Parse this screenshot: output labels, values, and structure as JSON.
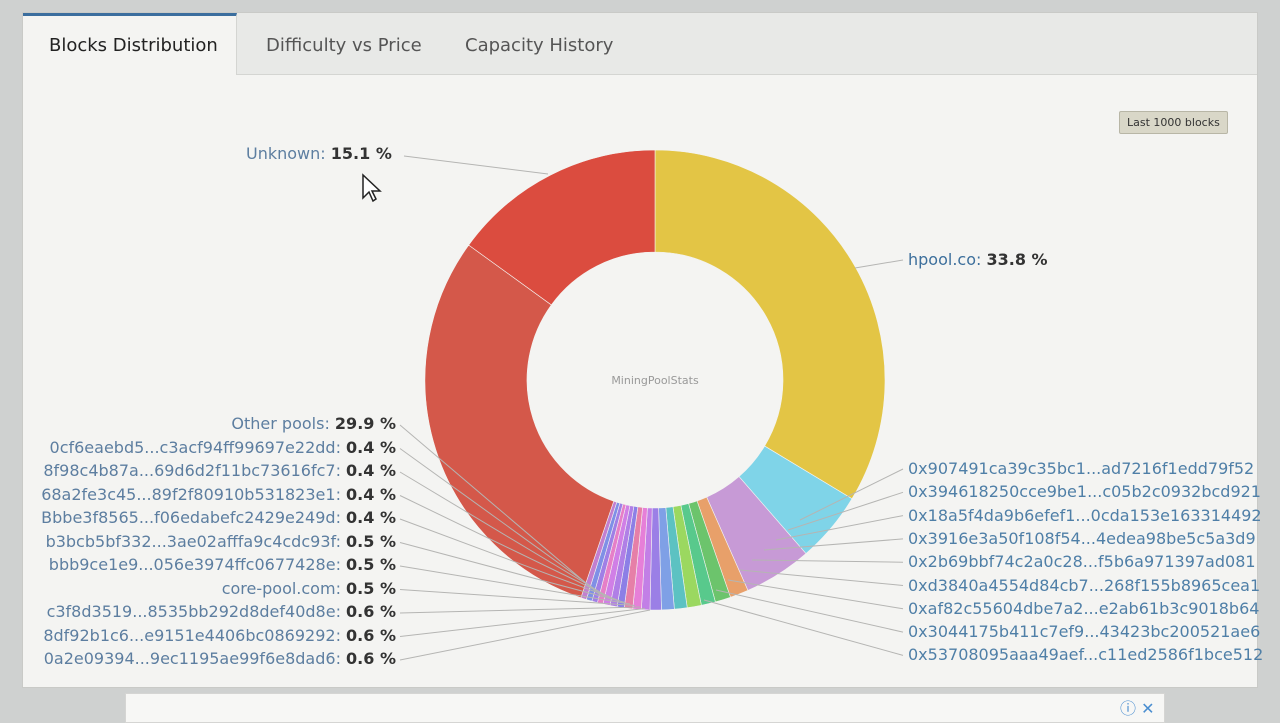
{
  "tabs": [
    {
      "label": "Blocks Distribution",
      "active": true
    },
    {
      "label": "Difficulty vs Price",
      "active": false
    },
    {
      "label": "Capacity History",
      "active": false
    }
  ],
  "badge": "Last 1000 blocks",
  "chart_data": {
    "type": "pie",
    "donut": true,
    "center_label": "MiningPoolStats",
    "slices": [
      {
        "name": "hpool.co",
        "value": 33.8,
        "color": "#e3c545"
      },
      {
        "name": "0x907491ca39c35bc1...ad7216f1edd79f52",
        "value": 5.0,
        "color": "#7fd4e8"
      },
      {
        "name": "0x394618250cce9be1...c05b2c0932bcd921",
        "value": 4.8,
        "color": "#c79ad6"
      },
      {
        "name": "0x18a5f4da9b6efef1...0cda153e163314492",
        "value": 1.3,
        "color": "#e8a06a"
      },
      {
        "name": "0x3916e3a50f108f54...4edea98be5c5a3d9",
        "value": 1.1,
        "color": "#6cc46c"
      },
      {
        "name": "0x2b69bbf74c2a0c28...f5b6a971397ad081",
        "value": 1.0,
        "color": "#58c98c"
      },
      {
        "name": "0xd3840a4554d84cb7...268f155b8965cea1",
        "value": 1.0,
        "color": "#9bd860"
      },
      {
        "name": "0xaf82c55604dbe7a2...e2ab61b3c9018b64",
        "value": 0.9,
        "color": "#5cc2c2"
      },
      {
        "name": "0x3044175b411c7ef9...43423bc200521ae6",
        "value": 0.9,
        "color": "#7fa0e6"
      },
      {
        "name": "0x53708095aaa49aef...c11ed2586f1bce512",
        "value": 0.8,
        "color": "#9b7fe6"
      },
      {
        "name": "0a2e09394...9ec1195ae99f6e8dad6",
        "value": 0.6,
        "color": "#c27fe6"
      },
      {
        "name": "8df92b1c6...e9151e4406bc0869292",
        "value": 0.6,
        "color": "#e67fd8"
      },
      {
        "name": "c3f8d3519...8535bb292d8def40d8e",
        "value": 0.6,
        "color": "#e67fa8"
      },
      {
        "name": "core-pool.com",
        "value": 0.5,
        "color": "#8c7fe6"
      },
      {
        "name": "bbb9ce1e9...056e3974ffc0677428e",
        "value": 0.5,
        "color": "#b07fe6"
      },
      {
        "name": "b3bcb5bf332...3ae02afffa9c4cdc93f",
        "value": 0.5,
        "color": "#d07fe6"
      },
      {
        "name": "Bbbe3f8565...f06edabefc2429e249d",
        "value": 0.4,
        "color": "#e67fc8"
      },
      {
        "name": "68a2fe3c45...89f2f80910b531823e1",
        "value": 0.4,
        "color": "#a07fe6"
      },
      {
        "name": "8f98c4b87a...69d6d2f11bc73616fc7",
        "value": 0.4,
        "color": "#7f8fe6"
      },
      {
        "name": "0cf6eaebd5...c3acf94ff99697e22dd",
        "value": 0.4,
        "color": "#c27fd0"
      },
      {
        "name": "Other pools",
        "value": 29.9,
        "color": "#d4584a"
      },
      {
        "name": "Unknown",
        "value": 15.1,
        "color": "#db4c3f"
      }
    ]
  },
  "left_labels": [
    {
      "name": "Other pools",
      "pct": "29.9 %"
    },
    {
      "name": "0cf6eaebd5...c3acf94ff99697e22dd",
      "pct": "0.4 %"
    },
    {
      "name": "8f98c4b87a...69d6d2f11bc73616fc7",
      "pct": "0.4 %"
    },
    {
      "name": "68a2fe3c45...89f2f80910b531823e1",
      "pct": "0.4 %"
    },
    {
      "name": "Bbbe3f8565...f06edabefc2429e249d",
      "pct": "0.4 %"
    },
    {
      "name": "b3bcb5bf332...3ae02afffa9c4cdc93f",
      "pct": "0.5 %"
    },
    {
      "name": "bbb9ce1e9...056e3974ffc0677428e",
      "pct": "0.5 %"
    },
    {
      "name": "core-pool.com",
      "pct": "0.5 %"
    },
    {
      "name": "c3f8d3519...8535bb292d8def40d8e",
      "pct": "0.6 %"
    },
    {
      "name": "8df92b1c6...e9151e4406bc0869292",
      "pct": "0.6 %"
    },
    {
      "name": "0a2e09394...9ec1195ae99f6e8dad6",
      "pct": "0.6 %"
    }
  ],
  "right_labels": [
    "0x907491ca39c35bc1...ad7216f1edd79f52",
    "0x394618250cce9be1...c05b2c0932bcd921",
    "0x18a5f4da9b6efef1...0cda153e163314492",
    "0x3916e3a50f108f54...4edea98be5c5a3d9",
    "0x2b69bbf74c2a0c28...f5b6a971397ad081",
    "0xd3840a4554d84cb7...268f155b8965cea1",
    "0xaf82c55604dbe7a2...e2ab61b3c9018b64",
    "0x3044175b411c7ef9...43423bc200521ae6",
    "0x53708095aaa49aef...c11ed2586f1bce512"
  ],
  "top_labels": {
    "unknown": {
      "name": "Unknown",
      "pct": "15.1 %"
    },
    "hpool": {
      "name": "hpool.co",
      "pct": "33.8 %"
    }
  },
  "ad": {
    "info_icon": "info-icon",
    "close_icon": "close-icon"
  }
}
